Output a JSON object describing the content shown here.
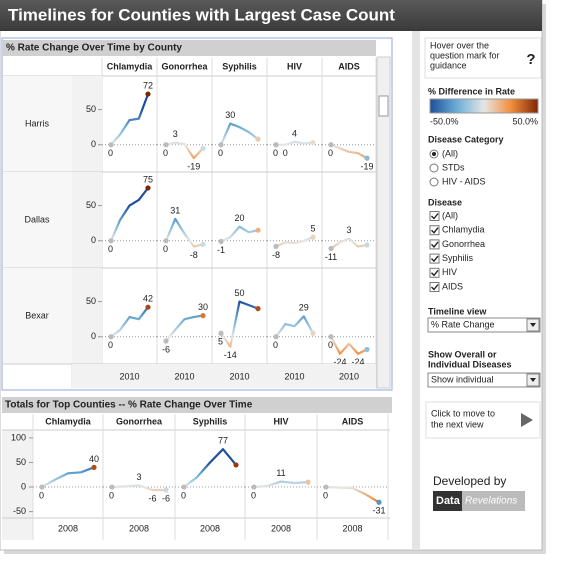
{
  "header": {
    "title": "Timelines for Counties with Largest Case Count"
  },
  "chart_data": [
    {
      "type": "small-multiples-line",
      "title": "% Rate Change Over Time by County",
      "columns": [
        "Chlamydia",
        "Gonorrhea",
        "Syphilis",
        "HIV",
        "AIDS"
      ],
      "x": [
        null,
        null,
        "2010",
        null,
        null
      ],
      "ylim": [
        -33,
        92
      ],
      "yticks": [
        0,
        50
      ],
      "panels": [
        {
          "name": "Harris",
          "lines": [
            [
              0,
              15,
              35,
              37,
              72
            ],
            [
              0,
              3,
              1,
              -19,
              -5
            ],
            [
              0,
              30,
              25,
              18,
              8
            ],
            [
              0,
              0,
              4,
              2,
              3
            ],
            [
              0,
              -5,
              -10,
              -12,
              -19
            ]
          ]
        },
        {
          "name": "Dallas",
          "lines": [
            [
              0,
              30,
              50,
              58,
              75
            ],
            [
              0,
              31,
              10,
              -8,
              -5
            ],
            [
              -1,
              5,
              20,
              12,
              15
            ],
            [
              -8,
              -2,
              -3,
              0,
              5
            ],
            [
              -11,
              -2,
              3,
              -8,
              -6
            ]
          ]
        },
        {
          "name": "Bexar",
          "lines": [
            [
              0,
              10,
              28,
              25,
              42
            ],
            [
              -6,
              10,
              25,
              28,
              30
            ],
            [
              5,
              -14,
              50,
              45,
              40
            ],
            [
              0,
              18,
              15,
              29,
              5
            ],
            [
              0,
              -24,
              -10,
              -24,
              -18
            ]
          ]
        }
      ]
    },
    {
      "type": "small-multiples-line",
      "title": "Totals for Top Counties -- % Rate Change Over Time",
      "columns": [
        "Chlamydia",
        "Gonorrhea",
        "Syphilis",
        "HIV",
        "AIDS"
      ],
      "x": [
        null,
        null,
        "2008",
        null,
        null
      ],
      "ylim": [
        -63,
        112
      ],
      "yticks": [
        -50,
        0,
        50,
        100
      ],
      "lines": [
        [
          0,
          15,
          28,
          30,
          40
        ],
        [
          0,
          1,
          3,
          -6,
          -6
        ],
        [
          0,
          20,
          50,
          77,
          45
        ],
        [
          0,
          2,
          11,
          8,
          10
        ],
        [
          0,
          -1,
          -2,
          -15,
          -31
        ]
      ]
    }
  ],
  "panel": {
    "hover_help": [
      "Hover over the",
      "question mark for",
      "guidance"
    ],
    "help_icon": "?",
    "color_legend": {
      "title": "% Difference in Rate",
      "min": {
        "value": -50,
        "label": "-50.0%"
      },
      "max": {
        "value": 50,
        "label": "50.0%"
      },
      "colors": [
        "#1f4e9c",
        "#6baed6",
        "#e6e6e6",
        "#f28e3c",
        "#7f2704"
      ]
    },
    "disease_category": {
      "title": "Disease Category",
      "options": [
        "(All)",
        "STDs",
        "HIV - AIDS"
      ]
    },
    "disease": {
      "title": "Disease",
      "options": [
        "(All)",
        "Chlamydia",
        "Gonorrhea",
        "Syphilis",
        "HIV",
        "AIDS"
      ]
    },
    "timeline_view": {
      "title": "Timeline view",
      "value": "% Rate Change"
    },
    "overall": {
      "title": [
        "Show Overall or",
        "Individual Diseases"
      ],
      "value": "Show individual"
    },
    "next_view": [
      "Click to move to",
      "the next view"
    ],
    "developed_by": "Developed by",
    "logo": [
      "Data",
      "Revelations"
    ]
  }
}
